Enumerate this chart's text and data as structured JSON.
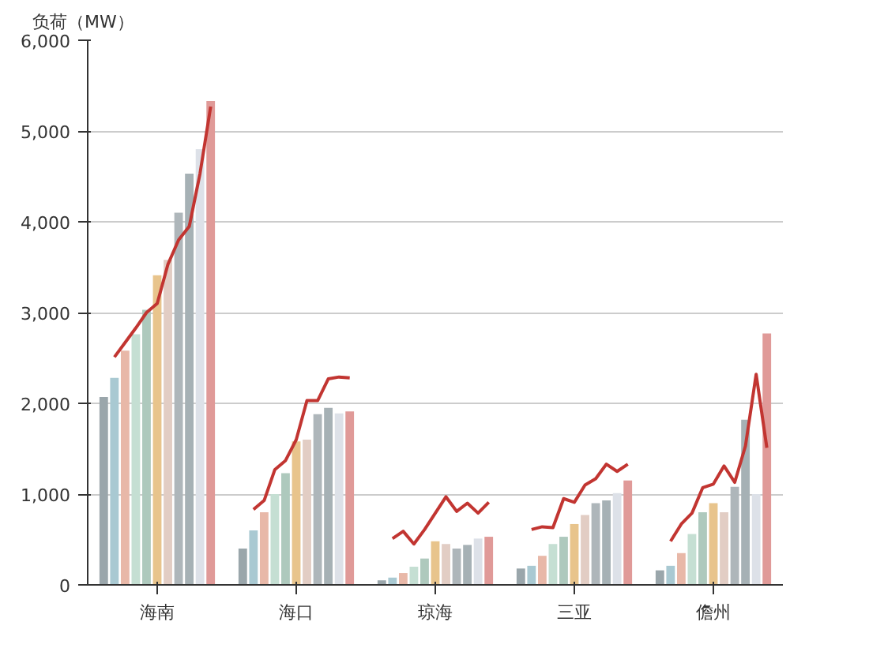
{
  "chart_data": {
    "type": "bar",
    "ylabel": "负荷（MW）",
    "categories": [
      null,
      null,
      null,
      null,
      null,
      null,
      "海南",
      null,
      null,
      null,
      null,
      null,
      null,
      null,
      null,
      null,
      null,
      null,
      null,
      "海口",
      null,
      null,
      null,
      null,
      null,
      null,
      null,
      null,
      null,
      null,
      null,
      null,
      "琼海",
      null,
      null,
      null,
      null,
      null,
      null,
      null,
      null,
      null,
      null,
      null,
      null,
      "三亚",
      null,
      null,
      null,
      null,
      null,
      null,
      null,
      null,
      null,
      null,
      null,
      null,
      "儋州",
      null,
      null,
      null,
      null,
      null,
      null
    ],
    "ylim": [
      0,
      6000
    ],
    "yticks": [
      {
        "value": 0,
        "label": "0"
      },
      {
        "value": 1000,
        "label": "1,000"
      },
      {
        "value": 2000,
        "label": "2,000"
      },
      {
        "value": 3000,
        "label": "3,000"
      },
      {
        "value": 4000,
        "label": "4,000"
      },
      {
        "value": 5000,
        "label": "5,000"
      },
      {
        "value": 6000,
        "label": "6,000"
      }
    ],
    "grid": "y",
    "series": [
      {
        "values": [
          null,
          2070,
          2280,
          2580,
          2760,
          3030,
          3410,
          3580,
          4100,
          4530,
          4800,
          5330,
          null,
          null,
          400,
          600,
          800,
          1000,
          1230,
          1580,
          1600,
          1880,
          1950,
          1890,
          1910,
          null,
          null,
          50,
          80,
          130,
          200,
          290,
          480,
          450,
          400,
          440,
          510,
          530,
          null,
          null,
          180,
          210,
          320,
          450,
          530,
          670,
          770,
          900,
          930,
          1010,
          1150,
          null,
          null,
          160,
          210,
          350,
          560,
          800,
          900,
          800,
          1080,
          1820,
          1000,
          2770,
          null
        ],
        "colors": [
          null,
          "#9aa6ab",
          "#a9c9d2",
          "#e8b8a8",
          "#c5dfd3",
          "#aec9bd",
          "#e8c48c",
          "#e2cdc4",
          "#aeb6ba",
          "#a6b1b5",
          "#dde1e8",
          "#e09a98",
          null,
          null,
          "#9aa6ab",
          "#a9c9d2",
          "#e8b8a8",
          "#c5dfd3",
          "#aec9bd",
          "#e8c48c",
          "#e2cdc4",
          "#aeb6ba",
          "#a6b1b5",
          "#dde1e8",
          "#e09a98",
          null,
          null,
          "#9aa6ab",
          "#a9c9d2",
          "#e8b8a8",
          "#c5dfd3",
          "#aec9bd",
          "#e8c48c",
          "#e2cdc4",
          "#aeb6ba",
          "#a6b1b5",
          "#dde1e8",
          "#e09a98",
          null,
          null,
          "#9aa6ab",
          "#a9c9d2",
          "#e8b8a8",
          "#c5dfd3",
          "#aec9bd",
          "#e8c48c",
          "#e2cdc4",
          "#aeb6ba",
          "#a6b1b5",
          "#dde1e8",
          "#e09a98",
          null,
          null,
          "#9aa6ab",
          "#a9c9d2",
          "#e8b8a8",
          "#c5dfd3",
          "#aec9bd",
          "#e8c48c",
          "#e2cdc4",
          "#aeb6ba",
          "#a6b1b5",
          "#dde1e8",
          "#e09a98",
          null
        ]
      },
      {
        "type": "line",
        "color": "#c23531",
        "values": [
          null,
          null,
          2510,
          2670,
          2830,
          3000,
          3100,
          3530,
          3800,
          3950,
          4530,
          5270,
          null,
          null,
          null,
          830,
          930,
          1270,
          1370,
          1600,
          2030,
          2030,
          2270,
          2290,
          2280,
          null,
          null,
          null,
          510,
          590,
          450,
          610,
          790,
          970,
          810,
          900,
          790,
          910,
          null,
          null,
          null,
          610,
          640,
          630,
          950,
          910,
          1100,
          1170,
          1330,
          1250,
          1330,
          null,
          null,
          null,
          480,
          670,
          790,
          1070,
          1110,
          1310,
          1130,
          1530,
          2320,
          1510,
          null
        ]
      }
    ]
  }
}
